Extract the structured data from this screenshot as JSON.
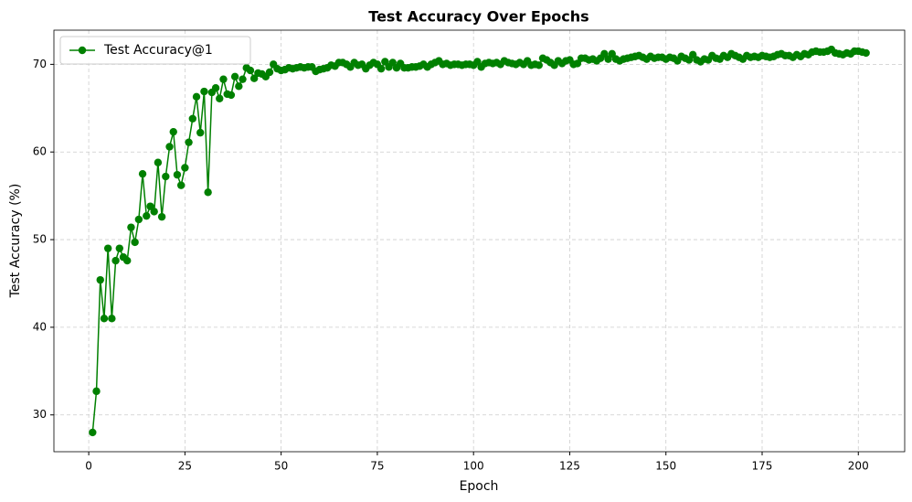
{
  "chart_data": {
    "type": "line",
    "title": "Test Accuracy Over Epochs",
    "xlabel": "Epoch",
    "ylabel": "Test Accuracy (%)",
    "x": [
      1,
      2,
      3,
      4,
      5,
      6,
      7,
      8,
      9,
      10,
      11,
      12,
      13,
      14,
      15,
      16,
      17,
      18,
      19,
      20,
      21,
      22,
      23,
      24,
      25,
      26,
      27,
      28,
      29,
      30,
      31,
      32,
      33,
      34,
      35,
      36,
      37,
      38,
      39,
      40,
      41,
      42,
      43,
      44,
      45,
      46,
      47,
      48,
      49,
      50,
      51,
      52,
      53,
      54,
      55,
      56,
      57,
      58,
      59,
      60,
      61,
      62,
      63,
      64,
      65,
      66,
      67,
      68,
      69,
      70,
      71,
      72,
      73,
      74,
      75,
      76,
      77,
      78,
      79,
      80,
      81,
      82,
      83,
      84,
      85,
      86,
      87,
      88,
      89,
      90,
      91,
      92,
      93,
      94,
      95,
      96,
      97,
      98,
      99,
      100,
      101,
      102,
      103,
      104,
      105,
      106,
      107,
      108,
      109,
      110,
      111,
      112,
      113,
      114,
      115,
      116,
      117,
      118,
      119,
      120,
      121,
      122,
      123,
      124,
      125,
      126,
      127,
      128,
      129,
      130,
      131,
      132,
      133,
      134,
      135,
      136,
      137,
      138,
      139,
      140,
      141,
      142,
      143,
      144,
      145,
      146,
      147,
      148,
      149,
      150,
      151,
      152,
      153,
      154,
      155,
      156,
      157,
      158,
      159,
      160,
      161,
      162,
      163,
      164,
      165,
      166,
      167,
      168,
      169,
      170,
      171,
      172,
      173,
      174,
      175,
      176,
      177,
      178,
      179,
      180,
      181,
      182,
      183,
      184,
      185,
      186,
      187,
      188,
      189,
      190,
      191,
      192,
      193,
      194,
      195,
      196,
      197,
      198,
      199,
      200,
      201,
      202
    ],
    "series": [
      {
        "name": "Test Accuracy@1",
        "color": "#008000",
        "values": [
          28.0,
          32.7,
          45.4,
          41.0,
          49.0,
          41.0,
          47.6,
          49.0,
          48.0,
          47.6,
          51.4,
          49.7,
          52.3,
          57.5,
          52.7,
          53.8,
          53.2,
          58.8,
          52.6,
          57.2,
          60.6,
          62.3,
          57.4,
          56.2,
          58.2,
          61.1,
          63.8,
          66.3,
          62.2,
          66.9,
          55.4,
          66.8,
          67.3,
          66.1,
          68.3,
          66.6,
          66.5,
          68.6,
          67.5,
          68.3,
          69.6,
          69.3,
          68.4,
          69.0,
          68.9,
          68.6,
          69.1,
          70.0,
          69.5,
          69.3,
          69.4,
          69.6,
          69.5,
          69.6,
          69.7,
          69.6,
          69.7,
          69.7,
          69.2,
          69.4,
          69.5,
          69.6,
          69.9,
          69.8,
          70.2,
          70.2,
          70.0,
          69.7,
          70.2,
          69.9,
          70.0,
          69.5,
          69.9,
          70.2,
          70.0,
          69.5,
          70.3,
          69.7,
          70.2,
          69.6,
          70.1,
          69.6,
          69.6,
          69.7,
          69.7,
          69.8,
          70.0,
          69.7,
          70.0,
          70.2,
          70.4,
          70.0,
          70.1,
          69.9,
          70.0,
          70.0,
          69.9,
          70.0,
          70.0,
          69.9,
          70.3,
          69.7,
          70.1,
          70.2,
          70.1,
          70.2,
          70.0,
          70.4,
          70.2,
          70.1,
          70.0,
          70.2,
          70.0,
          70.4,
          69.9,
          70.0,
          69.9,
          70.7,
          70.5,
          70.2,
          69.9,
          70.4,
          70.1,
          70.4,
          70.5,
          70.0,
          70.1,
          70.7,
          70.7,
          70.5,
          70.6,
          70.4,
          70.7,
          71.2,
          70.6,
          71.2,
          70.6,
          70.4,
          70.6,
          70.7,
          70.8,
          70.9,
          71.0,
          70.8,
          70.6,
          70.9,
          70.7,
          70.8,
          70.8,
          70.6,
          70.8,
          70.7,
          70.4,
          70.9,
          70.7,
          70.5,
          71.1,
          70.5,
          70.3,
          70.6,
          70.5,
          71.0,
          70.7,
          70.6,
          71.0,
          70.8,
          71.2,
          71.0,
          70.8,
          70.6,
          71.0,
          70.8,
          70.9,
          70.8,
          71.0,
          70.9,
          70.8,
          70.9,
          71.1,
          71.2,
          71.0,
          71.0,
          70.8,
          71.1,
          70.9,
          71.2,
          71.1,
          71.4,
          71.5,
          71.4,
          71.4,
          71.5,
          71.7,
          71.3,
          71.2,
          71.1,
          71.3,
          71.2,
          71.5,
          71.5,
          71.4,
          71.3
        ]
      }
    ],
    "xlim": [
      -9.05,
      212.05
    ],
    "ylim": [
      25.8,
      73.9
    ],
    "xticks": [
      0,
      25,
      50,
      75,
      100,
      125,
      150,
      175,
      200
    ],
    "yticks": [
      30,
      40,
      50,
      60,
      70
    ],
    "grid": true,
    "legend": "upper left"
  }
}
